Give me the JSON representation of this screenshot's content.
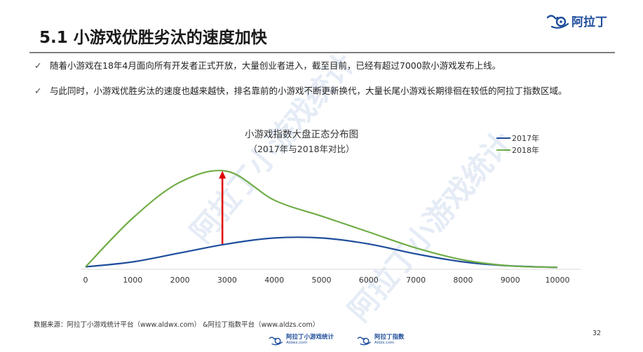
{
  "header": {
    "title": "5.1 小游戏优胜劣汰的速度加快",
    "logo_text": "阿拉丁"
  },
  "bullets": [
    {
      "check": "✓",
      "text": "随着小游戏在18年4月面向所有开发者正式开放，大量创业者进入，截至目前，已经有超过7000款小游戏发布上线。"
    },
    {
      "check": "✓",
      "text": "与此同时，小游戏优胜劣汰的速度也越来越快，排名靠前的小游戏不断更新换代，大量长尾小游戏长期徘徊在较低的阿拉丁指数区域。"
    }
  ],
  "watermark": {
    "text1": "阿拉丁小游戏统计",
    "text2": "阿拉丁小游戏统计"
  },
  "chart_data": {
    "type": "line",
    "title": "小游戏指数大盘正态分布图",
    "subtitle": "（2017年与2018年对比）",
    "x": [
      0,
      1000,
      2000,
      3000,
      4000,
      5000,
      6000,
      7000,
      8000,
      9000,
      10000
    ],
    "xlim": [
      0,
      10000
    ],
    "ylim": [
      0,
      100
    ],
    "series": [
      {
        "name": "2017年",
        "color": "#1f4e9c",
        "values": [
          1,
          6,
          15,
          24,
          30,
          30,
          24,
          14,
          6,
          2,
          0.5
        ]
      },
      {
        "name": "2018年",
        "color": "#70ad47",
        "values": [
          1,
          50,
          86,
          97,
          68,
          52,
          36,
          20,
          8,
          2,
          0.5
        ]
      }
    ],
    "annotation": {
      "type": "arrow",
      "x": 2900,
      "y_from": 24,
      "y_to": 96,
      "color": "#e00000"
    },
    "grid": false,
    "legend_position": "top-right"
  },
  "footer": {
    "source": "数据来源：阿拉丁小游戏统计平台（www.aldwx.com）   &阿拉丁指数平台（www.aldzs.com）",
    "page": "32",
    "logo1_main": "阿拉丁小游戏统计",
    "logo1_sub": "Aldwx.com",
    "logo2_main": "阿拉丁指数",
    "logo2_sub": "Aldzs.com"
  }
}
